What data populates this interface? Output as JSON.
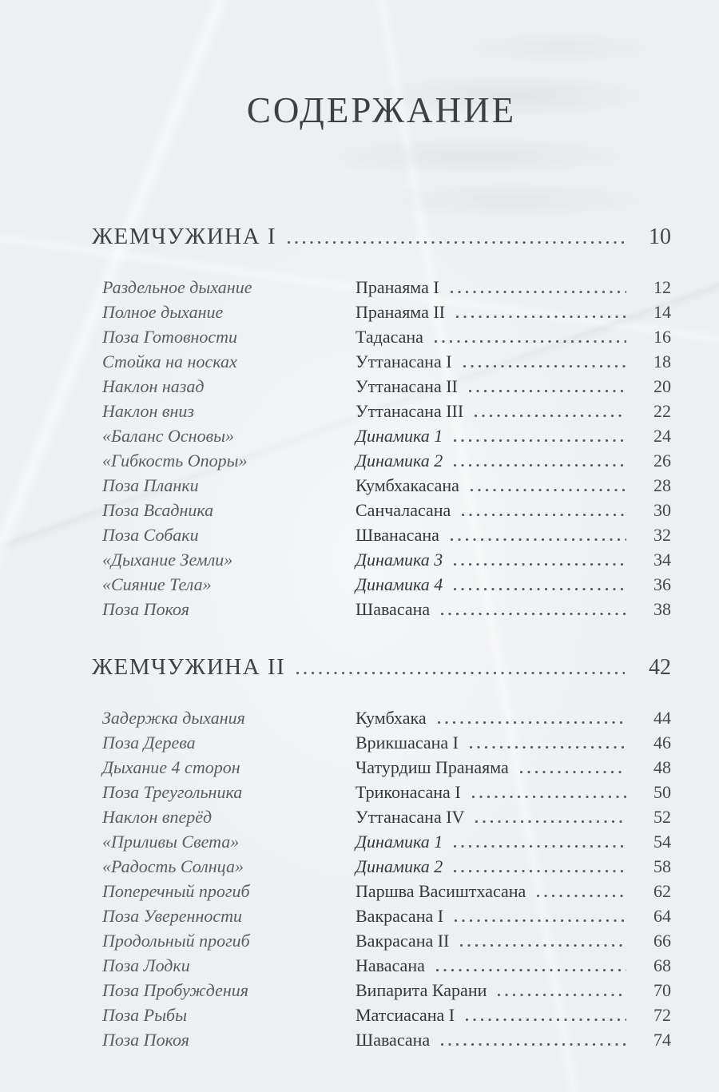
{
  "document": {
    "title": "СОДЕРЖАНИЕ",
    "sections": [
      {
        "heading": "ЖЕМЧУЖИНА I",
        "page": "10",
        "entries": [
          {
            "label": "Раздельное дыхание",
            "pose": "Пранаяма I",
            "page": "12",
            "pose_style": "normal"
          },
          {
            "label": "Полное дыхание",
            "pose": "Пранаяма II",
            "page": "14",
            "pose_style": "normal"
          },
          {
            "label": "Поза Готовности",
            "pose": "Тадасана",
            "page": "16",
            "pose_style": "normal"
          },
          {
            "label": "Стойка на носках",
            "pose": "Уттанасана I",
            "page": "18",
            "pose_style": "normal"
          },
          {
            "label": "Наклон назад",
            "pose": "Уттанасана II",
            "page": "20",
            "pose_style": "normal"
          },
          {
            "label": "Наклон вниз",
            "pose": "Уттанасана III",
            "page": "22",
            "pose_style": "normal"
          },
          {
            "label": "«Баланс Основы»",
            "pose": "Динамика 1",
            "page": "24",
            "pose_style": "italic"
          },
          {
            "label": "«Гибкость Опоры»",
            "pose": "Динамика 2",
            "page": "26",
            "pose_style": "italic"
          },
          {
            "label": "Поза Планки",
            "pose": "Кумбхакасана",
            "page": "28",
            "pose_style": "normal"
          },
          {
            "label": "Поза Всадника",
            "pose": "Санчаласана",
            "page": "30",
            "pose_style": "normal"
          },
          {
            "label": "Поза Собаки",
            "pose": "Шванасана",
            "page": "32",
            "pose_style": "normal"
          },
          {
            "label": "«Дыхание Земли»",
            "pose": "Динамика 3",
            "page": "34",
            "pose_style": "italic"
          },
          {
            "label": "«Сияние Тела»",
            "pose": "Динамика 4",
            "page": "36",
            "pose_style": "italic"
          },
          {
            "label": "Поза Покоя",
            "pose": "Шавасана",
            "page": "38",
            "pose_style": "normal"
          }
        ]
      },
      {
        "heading": "ЖЕМЧУЖИНА II",
        "page": "42",
        "entries": [
          {
            "label": "Задержка дыхания",
            "pose": "Кумбхака",
            "page": "44",
            "pose_style": "normal"
          },
          {
            "label": "Поза Дерева",
            "pose": "Врикшасана I",
            "page": "46",
            "pose_style": "normal"
          },
          {
            "label": "Дыхание 4 сторон",
            "pose": "Чатурдиш Пранаяма",
            "page": "48",
            "pose_style": "normal"
          },
          {
            "label": "Поза Треугольника",
            "pose": "Триконасана I",
            "page": "50",
            "pose_style": "normal"
          },
          {
            "label": "Наклон вперёд",
            "pose": "Уттанасана IV",
            "page": "52",
            "pose_style": "normal"
          },
          {
            "label": "«Приливы Света»",
            "pose": "Динамика 1",
            "page": "54",
            "pose_style": "italic"
          },
          {
            "label": "«Радость Солнца»",
            "pose": "Динамика 2",
            "page": "58",
            "pose_style": "italic"
          },
          {
            "label": "Поперечный прогиб",
            "pose": "Паршва Васиштхасана",
            "page": "62",
            "pose_style": "normal"
          },
          {
            "label": "Поза Уверенности",
            "pose": "Вакрасана I",
            "page": "64",
            "pose_style": "normal"
          },
          {
            "label": "Продольный прогиб",
            "pose": "Вакрасана II",
            "page": "66",
            "pose_style": "normal"
          },
          {
            "label": "Поза Лодки",
            "pose": "Навасана",
            "page": "68",
            "pose_style": "normal"
          },
          {
            "label": "Поза Пробуждения",
            "pose": "Випарита Карани",
            "page": "70",
            "pose_style": "normal"
          },
          {
            "label": "Поза Рыбы",
            "pose": "Матсиасана I",
            "page": "72",
            "pose_style": "normal"
          },
          {
            "label": "Поза Покоя",
            "pose": "Шавасана",
            "page": "74",
            "pose_style": "normal"
          }
        ]
      }
    ],
    "colors": {
      "paper": "#edeff1",
      "title_text": "#3c3f43",
      "heading_text": "#3e4145",
      "entry_label": "#5a5d61",
      "entry_pose": "#34373b",
      "page_number": "#44474b",
      "leader_dot": "#55585c"
    }
  }
}
